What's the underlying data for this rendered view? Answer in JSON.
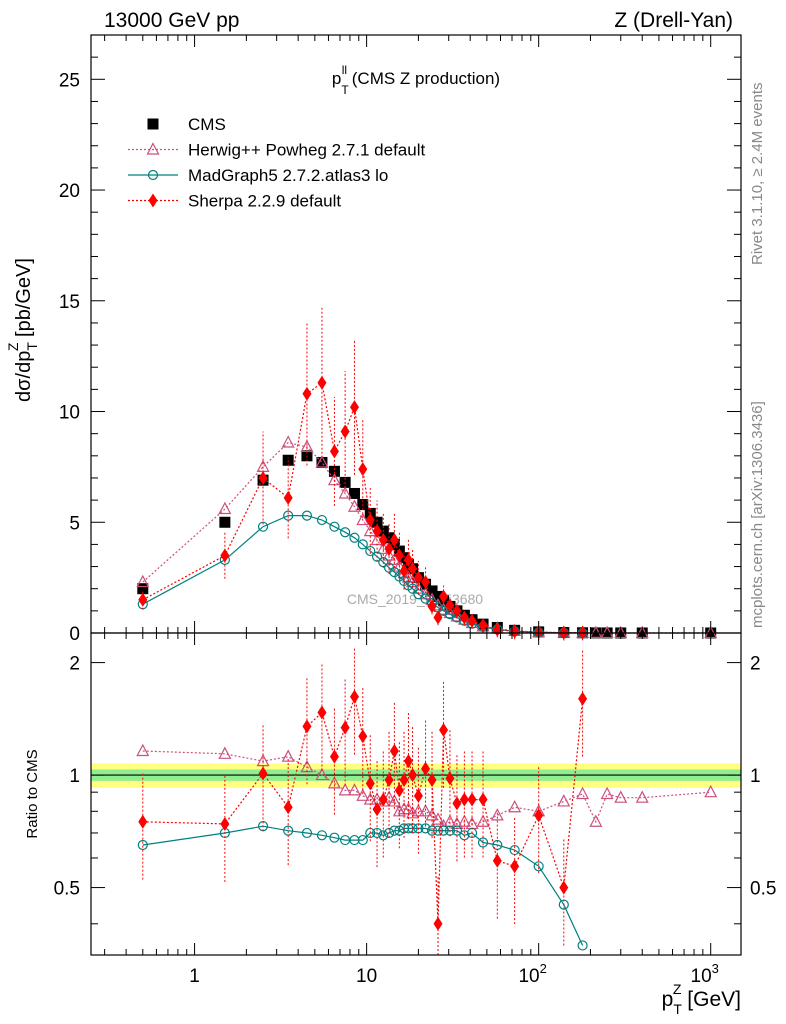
{
  "header": {
    "left": "13000 GeV pp",
    "right": "Z (Drell-Yan)"
  },
  "side_labels": {
    "rivet": "Rivet 3.1.10, ≥ 2.4M events",
    "mcplots": "mcplots.cern.ch [arXiv:1306.3436]"
  },
  "chart_data": [
    {
      "type": "scatter",
      "title_main": "p",
      "title_sup": "ll",
      "title_sub": "T",
      "title_rest": " (CMS Z production)",
      "xscale": "log",
      "xlim": [
        0.25,
        1500
      ],
      "ylim": [
        0,
        27
      ],
      "ylabel": "dσ/dp",
      "ylabel_sub": "T",
      "ylabel_sup": "Z",
      "ylabel_unit": " [pb/GeV]",
      "yticks": [
        "0",
        "5",
        "10",
        "15",
        "20",
        "25"
      ],
      "watermark": "CMS_2019_I1753680",
      "legend_position": "top-left",
      "series": [
        {
          "name": "CMS",
          "color": "#000000",
          "marker": "square",
          "x": [
            0.5,
            1.5,
            2.5,
            3.5,
            4.5,
            5.5,
            6.5,
            7.5,
            8.5,
            9.5,
            10.5,
            11.5,
            12.5,
            13.5,
            14.5,
            15.5,
            16.5,
            17.5,
            18.5,
            20,
            22,
            24,
            26,
            28,
            30.5,
            33.5,
            37,
            41,
            47.5,
            57.5,
            72.5,
            100,
            140,
            180,
            215,
            250,
            300,
            400,
            1000
          ],
          "y": [
            2.0,
            5.0,
            6.9,
            7.8,
            8.0,
            7.7,
            7.3,
            6.8,
            6.3,
            5.8,
            5.4,
            5.0,
            4.6,
            4.3,
            4.0,
            3.7,
            3.4,
            3.1,
            2.9,
            2.5,
            2.2,
            1.9,
            1.65,
            1.45,
            1.2,
            1.0,
            0.8,
            0.6,
            0.4,
            0.25,
            0.12,
            0.05,
            0.02,
            0.01,
            0.005,
            0.003,
            0.002,
            0.001,
            0.0002
          ]
        },
        {
          "name": "Herwig++ Powheg 2.7.1 default",
          "color": "#cc4f7e",
          "marker": "triangle",
          "x": [
            0.5,
            1.5,
            2.5,
            3.5,
            4.5,
            5.5,
            6.5,
            7.5,
            8.5,
            9.5,
            10.5,
            11.5,
            12.5,
            13.5,
            14.5,
            15.5,
            16.5,
            17.5,
            18.5,
            20,
            22,
            24,
            26,
            28,
            30.5,
            33.5,
            37,
            41,
            47.5,
            57.5,
            72.5,
            100,
            140,
            180,
            215,
            250,
            300,
            400,
            1000
          ],
          "y": [
            2.3,
            5.6,
            7.5,
            8.6,
            8.4,
            7.7,
            6.9,
            6.3,
            5.7,
            5.1,
            4.6,
            4.2,
            3.8,
            3.5,
            3.3,
            3.0,
            2.7,
            2.5,
            2.3,
            2.0,
            1.75,
            1.5,
            1.25,
            1.05,
            0.9,
            0.75,
            0.6,
            0.45,
            0.3,
            0.2,
            0.1,
            0.04,
            0.017,
            0.009,
            0.004,
            0.0025,
            0.0017,
            0.0009,
            0.0002
          ]
        },
        {
          "name": "MadGraph5 2.7.2.atlas3 lo",
          "color": "#008080",
          "marker": "circle",
          "x": [
            0.5,
            1.5,
            2.5,
            3.5,
            4.5,
            5.5,
            6.5,
            7.5,
            8.5,
            9.5,
            10.5,
            11.5,
            12.5,
            13.5,
            14.5,
            15.5,
            16.5,
            17.5,
            18.5,
            20,
            22,
            24,
            26,
            28,
            30.5,
            33.5,
            37,
            41,
            47.5,
            57.5,
            72.5,
            100,
            140,
            180
          ],
          "y": [
            1.3,
            3.3,
            4.8,
            5.3,
            5.3,
            5.1,
            4.8,
            4.55,
            4.3,
            4.0,
            3.7,
            3.45,
            3.2,
            2.95,
            2.75,
            2.55,
            2.35,
            2.15,
            2.0,
            1.75,
            1.55,
            1.35,
            1.15,
            1.0,
            0.85,
            0.7,
            0.55,
            0.42,
            0.27,
            0.16,
            0.08,
            0.03,
            0.01,
            0.004
          ]
        },
        {
          "name": "Sherpa 2.2.9 default",
          "color": "#ff0000",
          "marker": "diamond",
          "x": [
            0.5,
            1.5,
            2.5,
            3.5,
            4.5,
            5.5,
            6.5,
            7.5,
            8.5,
            9.5,
            10.5,
            11.5,
            12.5,
            13.5,
            14.5,
            15.5,
            16.5,
            17.5,
            18.5,
            20,
            22,
            24,
            26,
            28,
            30.5,
            33.5,
            37,
            41,
            47.5,
            57.5,
            72.5,
            100,
            140,
            180
          ],
          "y": [
            1.5,
            3.5,
            7.0,
            6.1,
            10.8,
            11.3,
            8.2,
            9.1,
            10.2,
            7.4,
            5.1,
            4.6,
            4.2,
            3.8,
            4.2,
            3.5,
            2.8,
            3.3,
            2.9,
            2.5,
            2.3,
            1.2,
            0.7,
            1.65,
            1.25,
            1.0,
            0.7,
            0.55,
            0.35,
            0.15,
            0.07,
            0.04,
            0.01,
            0.016
          ]
        }
      ]
    },
    {
      "type": "line",
      "ylabel": "Ratio to CMS",
      "xscale": "log",
      "yscale": "log",
      "xlabel": "p",
      "xlabel_sub": "T",
      "xlabel_sup": "Z",
      "xlabel_unit": " [GeV]",
      "xlim": [
        0.25,
        1500
      ],
      "ylim": [
        0.33,
        2.4
      ],
      "xticks": [
        {
          "base": "1",
          "exp": ""
        },
        {
          "base": "10",
          "exp": ""
        },
        {
          "base": "10",
          "exp": "2"
        },
        {
          "base": "10",
          "exp": "3"
        }
      ],
      "yticks": [
        "0.5",
        "1",
        "2"
      ],
      "bands": {
        "inner_color": "#90ee90",
        "outer_color": "#ffff80",
        "inner_halfwidth": 0.035,
        "outer_halfwidth": 0.075
      },
      "series": [
        {
          "name": "Herwig++ Powheg 2.7.1 default",
          "color": "#cc4f7e",
          "marker": "triangle",
          "x": [
            0.5,
            1.5,
            2.5,
            3.5,
            4.5,
            5.5,
            6.5,
            7.5,
            8.5,
            9.5,
            10.5,
            11.5,
            12.5,
            13.5,
            14.5,
            15.5,
            16.5,
            17.5,
            18.5,
            20,
            22,
            24,
            26,
            28,
            30.5,
            33.5,
            37,
            41,
            47.5,
            57.5,
            72.5,
            100,
            140,
            180,
            215,
            250,
            300,
            400,
            1000
          ],
          "y": [
            1.16,
            1.14,
            1.09,
            1.12,
            1.05,
            1.0,
            0.95,
            0.91,
            0.91,
            0.88,
            0.86,
            0.86,
            0.85,
            0.87,
            0.85,
            0.8,
            0.81,
            0.81,
            0.79,
            0.8,
            0.8,
            0.78,
            0.76,
            0.73,
            0.75,
            0.74,
            0.75,
            0.74,
            0.75,
            0.78,
            0.82,
            0.8,
            0.85,
            0.89,
            0.75,
            0.89,
            0.87,
            0.87,
            0.9
          ]
        },
        {
          "name": "MadGraph5 2.7.2.atlas3 lo",
          "color": "#008080",
          "marker": "circle",
          "x": [
            0.5,
            1.5,
            2.5,
            3.5,
            4.5,
            5.5,
            6.5,
            7.5,
            8.5,
            9.5,
            10.5,
            11.5,
            12.5,
            13.5,
            14.5,
            15.5,
            16.5,
            17.5,
            18.5,
            20,
            22,
            24,
            26,
            28,
            30.5,
            33.5,
            37,
            41,
            47.5,
            57.5,
            72.5,
            100,
            140,
            180
          ],
          "y": [
            0.65,
            0.7,
            0.73,
            0.71,
            0.7,
            0.69,
            0.68,
            0.67,
            0.67,
            0.67,
            0.7,
            0.7,
            0.69,
            0.7,
            0.71,
            0.71,
            0.72,
            0.72,
            0.72,
            0.72,
            0.72,
            0.71,
            0.71,
            0.71,
            0.71,
            0.71,
            0.69,
            0.7,
            0.66,
            0.65,
            0.63,
            0.57,
            0.45,
            0.35
          ]
        },
        {
          "name": "Sherpa 2.2.9 default",
          "color": "#ff0000",
          "marker": "diamond",
          "x": [
            0.5,
            1.5,
            2.5,
            3.5,
            4.5,
            5.5,
            6.5,
            7.5,
            8.5,
            9.5,
            10.5,
            11.5,
            12.5,
            13.5,
            14.5,
            15.5,
            16.5,
            17.5,
            18.5,
            20,
            22,
            24,
            26,
            28,
            30.5,
            33.5,
            37,
            41,
            47.5,
            57.5,
            72.5,
            100,
            140,
            180
          ],
          "y": [
            0.75,
            0.74,
            1.01,
            0.82,
            1.35,
            1.47,
            1.12,
            1.34,
            1.62,
            1.27,
            0.95,
            0.81,
            0.86,
            0.97,
            1.16,
            0.91,
            0.97,
            1.09,
            1.0,
            0.88,
            1.04,
            0.97,
            0.4,
            1.32,
            0.98,
            0.84,
            0.86,
            0.86,
            0.86,
            0.59,
            0.57,
            0.78,
            0.5,
            1.6
          ]
        }
      ]
    }
  ]
}
